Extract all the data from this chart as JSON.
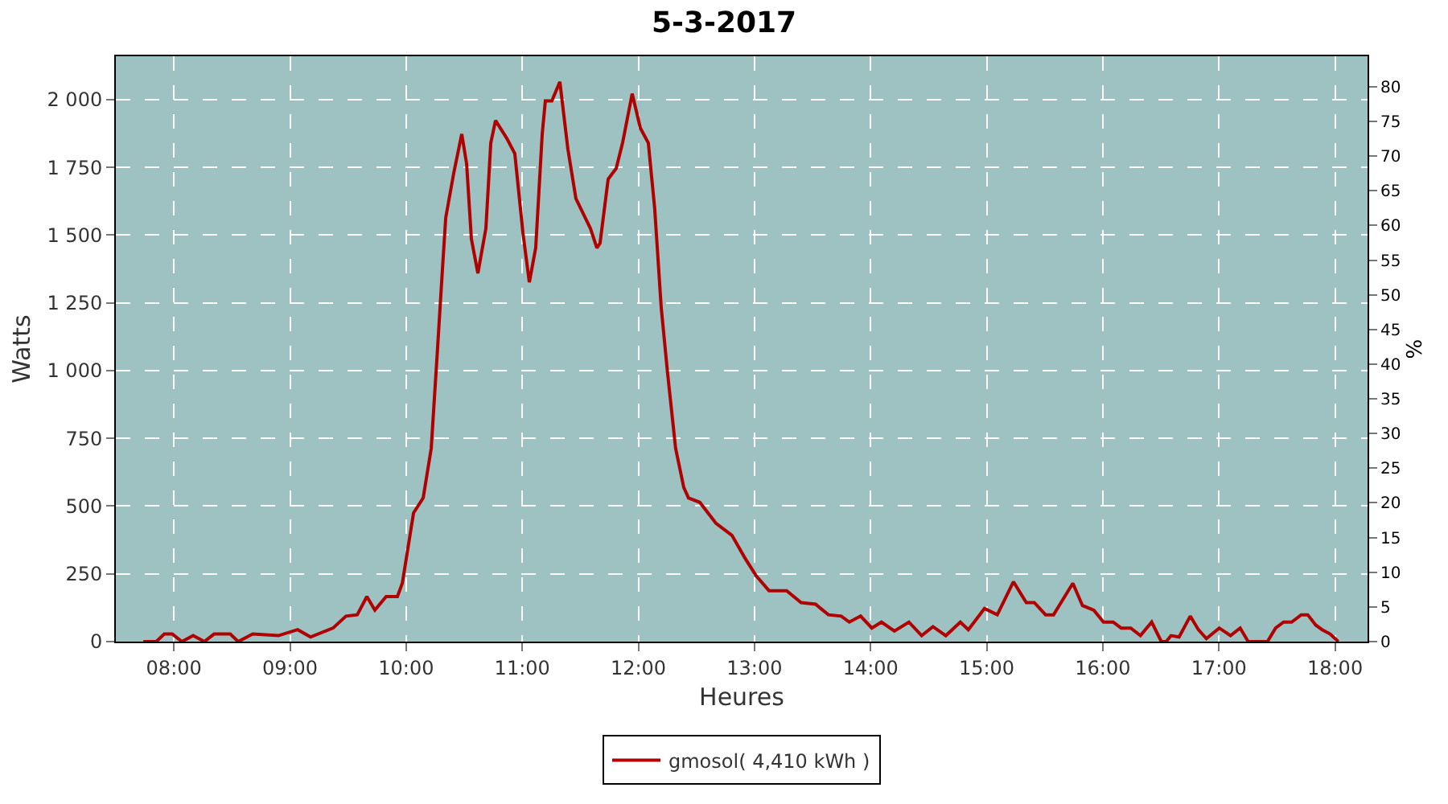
{
  "chart_data": {
    "type": "line",
    "title": "5-3-2017",
    "xlabel": "Heures",
    "ylabel": "Watts",
    "y2label": "%",
    "xlim": [
      7.5,
      18.28
    ],
    "ylim": [
      0,
      2160
    ],
    "y2lim": [
      0,
      84.4
    ],
    "xticks": [
      {
        "value": 8,
        "label": "08:00"
      },
      {
        "value": 9,
        "label": "09:00"
      },
      {
        "value": 10,
        "label": "10:00"
      },
      {
        "value": 11,
        "label": "11:00"
      },
      {
        "value": 12,
        "label": "12:00"
      },
      {
        "value": 13,
        "label": "13:00"
      },
      {
        "value": 14,
        "label": "14:00"
      },
      {
        "value": 15,
        "label": "15:00"
      },
      {
        "value": 16,
        "label": "16:00"
      },
      {
        "value": 17,
        "label": "17:00"
      },
      {
        "value": 18,
        "label": "18:00"
      }
    ],
    "yticks": [
      0,
      250,
      500,
      750,
      {
        "value": 1000,
        "label": "1 000"
      },
      {
        "value": 1250,
        "label": "1 250"
      },
      {
        "value": 1500,
        "label": "1 500"
      },
      {
        "value": 1750,
        "label": "1 750"
      },
      {
        "value": 2000,
        "label": "2 000"
      }
    ],
    "y2ticks": [
      0,
      5,
      10,
      15,
      20,
      25,
      30,
      35,
      40,
      45,
      50,
      55,
      60,
      65,
      70,
      75,
      80
    ],
    "grid": true,
    "legend": "bottom",
    "marker": "none",
    "line_style": "solid",
    "series": [
      {
        "name": "gmosol( 4,410 kWh )",
        "color": "#b00000",
        "x": [
          7.737,
          7.848,
          7.917,
          7.986,
          8.069,
          8.166,
          8.263,
          8.346,
          8.485,
          8.554,
          8.679,
          8.9,
          9.066,
          9.177,
          9.371,
          9.482,
          9.579,
          9.662,
          9.731,
          9.828,
          9.925,
          9.967,
          10.064,
          10.147,
          10.216,
          10.271,
          10.313,
          10.341,
          10.41,
          10.479,
          10.521,
          10.562,
          10.618,
          10.687,
          10.729,
          10.77,
          10.867,
          10.936,
          11.006,
          11.061,
          11.116,
          11.172,
          11.199,
          11.255,
          11.324,
          11.393,
          11.462,
          11.587,
          11.643,
          11.67,
          11.74,
          11.809,
          11.864,
          11.947,
          12.017,
          12.086,
          12.141,
          12.197,
          12.252,
          12.321,
          12.391,
          12.432,
          12.529,
          12.668,
          12.806,
          12.917,
          13.014,
          13.125,
          13.277,
          13.402,
          13.526,
          13.637,
          13.748,
          13.817,
          13.914,
          14.011,
          14.094,
          14.205,
          14.33,
          14.44,
          14.537,
          14.648,
          14.773,
          14.842,
          14.981,
          15.091,
          15.23,
          15.341,
          15.41,
          15.507,
          15.576,
          15.742,
          15.825,
          15.922,
          16.006,
          16.089,
          16.158,
          16.241,
          16.324,
          16.421,
          16.504,
          16.546,
          16.587,
          16.657,
          16.753,
          16.823,
          16.892,
          17.003,
          17.1,
          17.183,
          17.252,
          17.418,
          17.488,
          17.557,
          17.626,
          17.709,
          17.765,
          17.834,
          17.889,
          17.958,
          18.028
        ],
        "values": [
          0,
          0,
          28,
          28,
          0,
          22,
          0,
          28,
          28,
          0,
          28,
          22,
          44,
          17,
          50,
          94,
          99,
          166,
          116,
          166,
          166,
          215,
          475,
          530,
          713,
          1083,
          1376,
          1564,
          1729,
          1873,
          1763,
          1486,
          1359,
          1525,
          1840,
          1923,
          1857,
          1801,
          1508,
          1326,
          1453,
          1873,
          1995,
          1995,
          2066,
          1818,
          1635,
          1525,
          1453,
          1470,
          1707,
          1746,
          1840,
          2022,
          1895,
          1840,
          1597,
          1232,
          989,
          713,
          569,
          530,
          514,
          437,
          392,
          309,
          243,
          188,
          188,
          144,
          138,
          99,
          94,
          72,
          94,
          50,
          72,
          39,
          72,
          22,
          55,
          22,
          72,
          44,
          122,
          99,
          221,
          144,
          144,
          99,
          99,
          215,
          133,
          116,
          72,
          72,
          50,
          50,
          22,
          72,
          0,
          0,
          22,
          17,
          94,
          44,
          11,
          50,
          22,
          50,
          0,
          0,
          50,
          72,
          72,
          99,
          99,
          61,
          44,
          28,
          0
        ]
      }
    ]
  }
}
